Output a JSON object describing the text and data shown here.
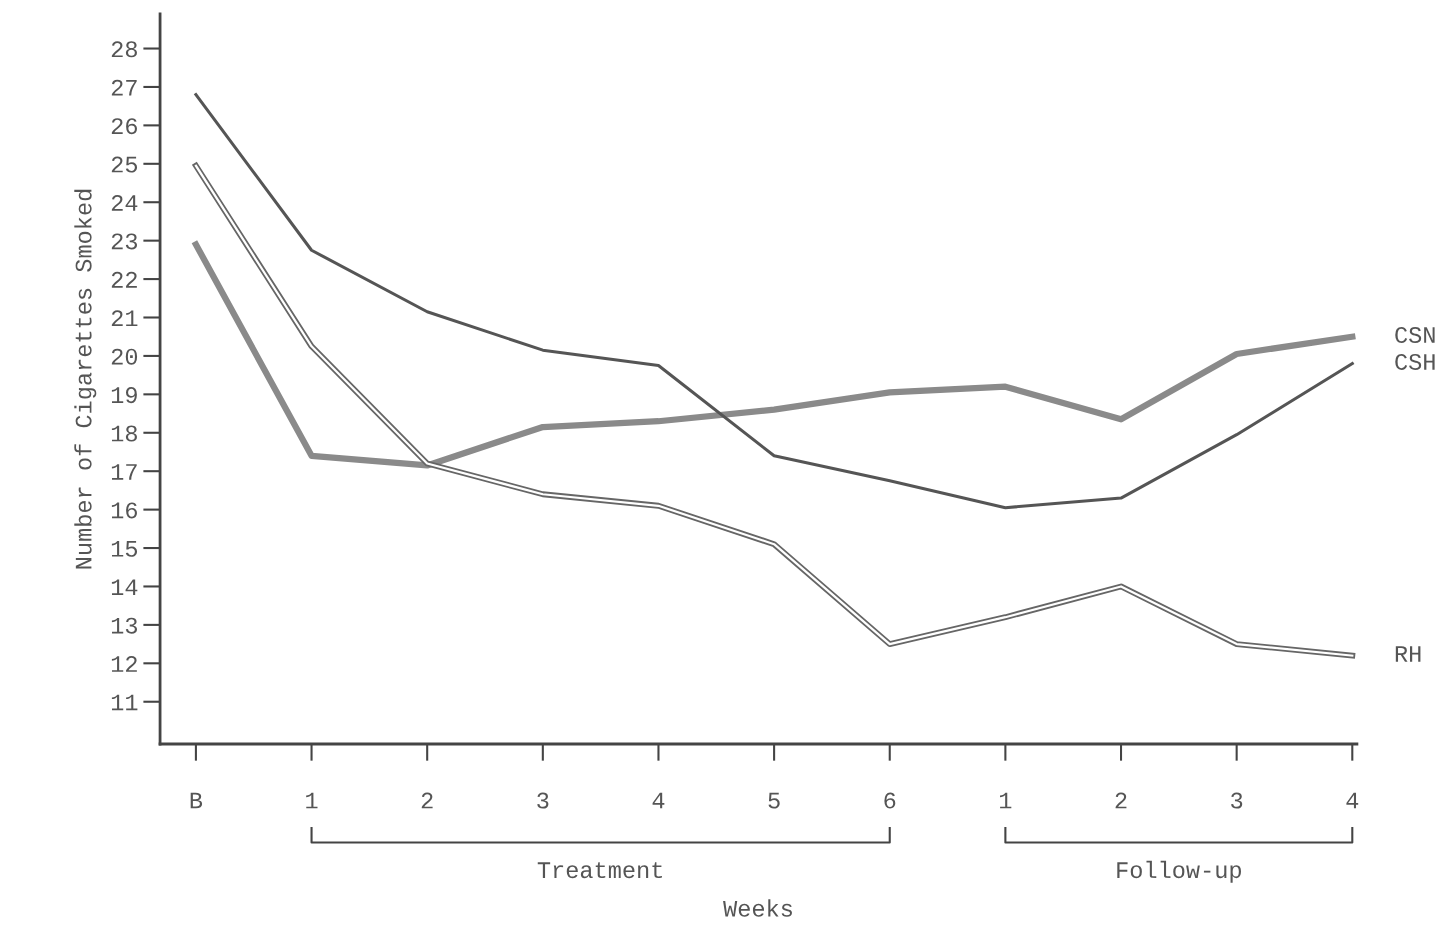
{
  "chart_data": {
    "type": "line",
    "ylabel": "Number of Cigarettes Smoked",
    "xlabel": "Weeks",
    "categories": [
      "B",
      "1",
      "2",
      "3",
      "4",
      "5",
      "6",
      "1",
      "2",
      "3",
      "4"
    ],
    "series": [
      {
        "name": "CSN",
        "color": "#8a8a8a",
        "values": [
          22.9,
          17.4,
          17.15,
          18.15,
          18.3,
          18.6,
          19.05,
          19.2,
          18.35,
          20.05,
          20.5
        ]
      },
      {
        "name": "CSH",
        "color": "#555555",
        "values": [
          26.8,
          22.75,
          21.15,
          20.15,
          19.75,
          17.4,
          16.75,
          16.05,
          16.3,
          17.95,
          19.8
        ]
      },
      {
        "name": "RH",
        "color": "#666666",
        "values": [
          24.95,
          20.25,
          17.2,
          16.4,
          16.1,
          15.1,
          12.5,
          13.2,
          14.0,
          12.5,
          12.2
        ]
      }
    ],
    "ylim": [
      9.9,
      28.9
    ],
    "yticks": [
      11,
      12,
      13,
      14,
      15,
      16,
      17,
      18,
      19,
      20,
      21,
      22,
      23,
      24,
      25,
      26,
      27,
      28
    ],
    "grid": false,
    "legend": false,
    "marker": "none",
    "annotations": [
      "Treatment",
      "Follow-up"
    ]
  }
}
